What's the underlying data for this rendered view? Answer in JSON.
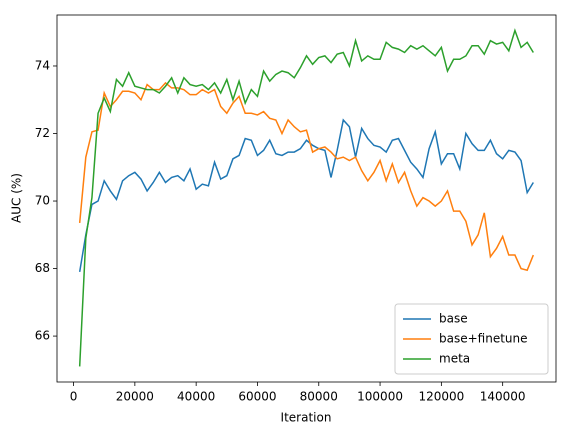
{
  "chart_data": {
    "type": "line",
    "x_label": "Iteration",
    "y_label": "AUC (%)",
    "x": [
      2000,
      4000,
      6000,
      8000,
      10000,
      12000,
      14000,
      16000,
      18000,
      20000,
      22000,
      24000,
      26000,
      28000,
      30000,
      32000,
      34000,
      36000,
      38000,
      40000,
      42000,
      44000,
      46000,
      48000,
      50000,
      52000,
      54000,
      56000,
      58000,
      60000,
      62000,
      64000,
      66000,
      68000,
      70000,
      72000,
      74000,
      76000,
      78000,
      80000,
      82000,
      84000,
      86000,
      88000,
      90000,
      92000,
      94000,
      96000,
      98000,
      100000,
      102000,
      104000,
      106000,
      108000,
      110000,
      112000,
      114000,
      116000,
      118000,
      120000,
      122000,
      124000,
      126000,
      128000,
      130000,
      132000,
      134000,
      136000,
      138000,
      140000,
      142000,
      144000,
      146000,
      148000,
      150000
    ],
    "series": [
      {
        "name": "base",
        "color": "#1f77b4",
        "values": [
          67.9,
          69.0,
          69.9,
          70.0,
          70.6,
          70.3,
          70.05,
          70.6,
          70.75,
          70.85,
          70.65,
          70.3,
          70.55,
          70.85,
          70.55,
          70.7,
          70.75,
          70.6,
          70.95,
          70.35,
          70.5,
          70.45,
          71.15,
          70.65,
          70.75,
          71.25,
          71.35,
          71.85,
          71.8,
          71.35,
          71.5,
          71.8,
          71.4,
          71.35,
          71.45,
          71.45,
          71.55,
          71.8,
          71.65,
          71.55,
          71.5,
          70.7,
          71.5,
          72.4,
          72.2,
          71.3,
          72.15,
          71.85,
          71.65,
          71.6,
          71.45,
          71.8,
          71.85,
          71.5,
          71.15,
          70.95,
          70.7,
          71.55,
          72.05,
          71.1,
          71.4,
          71.4,
          70.95,
          72.0,
          71.7,
          71.5,
          71.5,
          71.8,
          71.4,
          71.25,
          71.5,
          71.45,
          71.2,
          70.25,
          70.55
        ]
      },
      {
        "name": "base+finetune",
        "color": "#ff7f0e",
        "values": [
          69.35,
          71.3,
          72.05,
          72.1,
          73.2,
          72.8,
          73.0,
          73.25,
          73.25,
          73.2,
          73.0,
          73.45,
          73.3,
          73.3,
          73.5,
          73.35,
          73.35,
          73.3,
          73.15,
          73.15,
          73.3,
          73.2,
          73.3,
          72.8,
          72.6,
          72.9,
          73.1,
          72.6,
          72.6,
          72.55,
          72.65,
          72.45,
          72.4,
          72.0,
          72.4,
          72.2,
          72.05,
          72.1,
          71.45,
          71.55,
          71.6,
          71.45,
          71.25,
          71.3,
          71.2,
          71.3,
          70.9,
          70.6,
          70.85,
          71.2,
          70.6,
          71.1,
          70.55,
          70.85,
          70.3,
          69.85,
          70.1,
          70.0,
          69.85,
          70.0,
          70.3,
          69.7,
          69.7,
          69.4,
          68.7,
          69.0,
          69.65,
          68.35,
          68.6,
          68.95,
          68.4,
          68.4,
          68.0,
          67.95,
          68.4
        ]
      },
      {
        "name": "meta",
        "color": "#2ca02c",
        "values": [
          65.1,
          68.9,
          70.1,
          72.6,
          73.05,
          72.65,
          73.6,
          73.4,
          73.8,
          73.4,
          73.35,
          73.3,
          73.3,
          73.2,
          73.4,
          73.65,
          73.2,
          73.65,
          73.45,
          73.4,
          73.45,
          73.3,
          73.5,
          73.2,
          73.6,
          73.0,
          73.55,
          72.9,
          73.3,
          73.1,
          73.85,
          73.55,
          73.75,
          73.85,
          73.8,
          73.65,
          73.95,
          74.3,
          74.05,
          74.25,
          74.3,
          74.1,
          74.35,
          74.4,
          74.0,
          74.75,
          74.15,
          74.3,
          74.2,
          74.2,
          74.7,
          74.55,
          74.5,
          74.4,
          74.6,
          74.5,
          74.6,
          74.45,
          74.3,
          74.55,
          73.85,
          74.2,
          74.2,
          74.3,
          74.6,
          74.6,
          74.35,
          74.75,
          74.65,
          74.7,
          74.45,
          75.05,
          74.55,
          74.7,
          74.4
        ]
      }
    ],
    "xlim": [
      -5400,
      157400
    ],
    "xticks": [
      0,
      20000,
      40000,
      60000,
      80000,
      100000,
      120000,
      140000
    ],
    "ylim": [
      64.64,
      75.51
    ],
    "yticks": [
      66,
      68,
      70,
      72,
      74
    ],
    "grid": false,
    "legend": "lower right"
  }
}
